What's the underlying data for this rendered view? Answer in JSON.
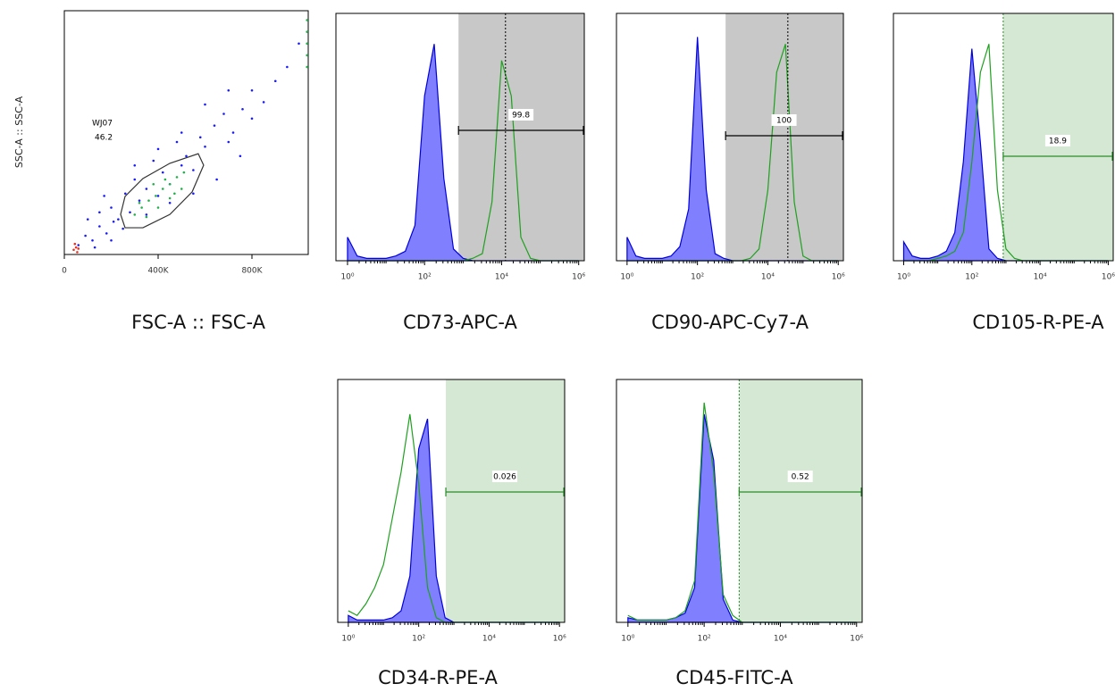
{
  "chart_data": [
    {
      "type": "scatter",
      "x_label": "FSC-A :: FSC-A",
      "y_label": "SSC-A :: SSC-A",
      "xlim": [
        0,
        1040
      ],
      "ylim": [
        0,
        1040
      ],
      "xticks": [
        0,
        {
          "value": 400,
          "label": "400K"
        },
        {
          "value": 800,
          "label": "800K"
        }
      ],
      "series": [
        {
          "color": "#1a1aff",
          "x": [
            60,
            90,
            120,
            150,
            180,
            200,
            230,
            260,
            280,
            300,
            320,
            350,
            380,
            400,
            420,
            450,
            480,
            500,
            520,
            550,
            580,
            600,
            640,
            680,
            700,
            720,
            760,
            800,
            850,
            900,
            950,
            1000,
            150,
            250,
            350,
            450,
            550,
            650,
            750,
            200,
            300,
            400,
            500,
            600,
            700,
            800,
            100,
            130,
            170,
            210
          ],
          "values": [
            40,
            80,
            60,
            120,
            90,
            200,
            150,
            260,
            180,
            320,
            230,
            280,
            400,
            250,
            350,
            300,
            480,
            380,
            420,
            360,
            500,
            460,
            550,
            600,
            480,
            520,
            620,
            700,
            650,
            740,
            800,
            900,
            180,
            110,
            170,
            220,
            260,
            320,
            420,
            60,
            380,
            450,
            520,
            640,
            700,
            580,
            150,
            30,
            250,
            140
          ]
        },
        {
          "color": "#22b04a",
          "x": [
            300,
            330,
            360,
            390,
            420,
            450,
            480,
            510,
            350,
            400,
            450,
            500,
            380,
            430,
            470,
            320,
            1035,
            1035,
            1035,
            1035,
            1035
          ],
          "values": [
            170,
            200,
            230,
            250,
            280,
            300,
            330,
            350,
            160,
            200,
            240,
            280,
            300,
            320,
            260,
            220,
            800,
            850,
            900,
            950,
            1000
          ]
        },
        {
          "color": "#e83020",
          "x": [
            40,
            50,
            60,
            45,
            55
          ],
          "values": [
            20,
            30,
            25,
            45,
            10
          ]
        }
      ],
      "gates": [
        {
          "name": "WJ07",
          "percent": 46.2,
          "x": [
            240,
            259,
            335,
            450,
            571,
            594,
            545,
            450,
            335,
            259
          ],
          "y": [
            171,
            248,
            324,
            389,
            430,
            381,
            267,
            171,
            114,
            114
          ]
        }
      ]
    },
    {
      "type": "line",
      "x_label": "CD73-APC-A",
      "xscale": "log",
      "xlim": [
        0.5,
        1400000
      ],
      "ylim": [
        0,
        105
      ],
      "xticks": [
        {
          "value": 1,
          "label": "10⁰"
        },
        {
          "value": 100,
          "label": "10²"
        },
        {
          "value": 10000,
          "label": "10⁴"
        },
        {
          "value": 1000000,
          "label": "10⁶"
        }
      ],
      "x": [
        1,
        1.78,
        3.16,
        5.62,
        10,
        17.8,
        31.6,
        56.2,
        100,
        178,
        316,
        562,
        1000,
        1780,
        3160,
        5620,
        10000,
        17800,
        31600,
        56200,
        100000,
        178000,
        316000,
        562000,
        1000000
      ],
      "series": [
        {
          "color": "#0000e0",
          "fill": "#8080ff",
          "values": [
            10,
            2,
            1,
            1,
            1,
            2,
            4,
            15,
            70,
            92,
            35,
            5,
            1,
            0,
            0,
            0,
            0,
            0,
            0,
            0,
            0,
            0,
            0,
            0,
            0
          ]
        },
        {
          "color": "#1fa01f",
          "values": [
            0,
            0,
            0,
            0,
            0,
            0,
            0,
            0,
            0,
            0,
            0,
            0,
            0,
            1,
            3,
            25,
            85,
            70,
            10,
            1,
            0,
            0,
            0,
            0,
            0
          ]
        }
      ],
      "gate": {
        "from": 760,
        "to": 1400000,
        "percent": 99.8,
        "color": "#c8c8c8",
        "line_color": "#000000"
      },
      "marker": 12600
    },
    {
      "type": "line",
      "x_label": "CD90-APC-Cy7-A",
      "xscale": "log",
      "xlim": [
        0.5,
        1400000
      ],
      "ylim": [
        0,
        105
      ],
      "xticks": [
        {
          "value": 1,
          "label": "10⁰"
        },
        {
          "value": 100,
          "label": "10²"
        },
        {
          "value": 10000,
          "label": "10⁴"
        },
        {
          "value": 1000000,
          "label": "10⁶"
        }
      ],
      "x": [
        1,
        1.78,
        3.16,
        5.62,
        10,
        17.8,
        31.6,
        56.2,
        100,
        178,
        316,
        562,
        1000,
        1780,
        3160,
        5620,
        10000,
        17800,
        31600,
        56200,
        100000,
        178000,
        316000,
        562000,
        1000000
      ],
      "series": [
        {
          "color": "#0000e0",
          "fill": "#8080ff",
          "values": [
            10,
            2,
            1,
            1,
            1,
            2,
            6,
            22,
            95,
            30,
            3,
            1,
            0,
            0,
            0,
            0,
            0,
            0,
            0,
            0,
            0,
            0,
            0,
            0,
            0
          ]
        },
        {
          "color": "#1fa01f",
          "values": [
            0,
            0,
            0,
            0,
            0,
            0,
            0,
            0,
            0,
            0,
            0,
            0,
            0,
            0,
            1,
            5,
            30,
            80,
            92,
            25,
            2,
            0,
            0,
            0,
            0
          ]
        }
      ],
      "gate": {
        "from": 630,
        "to": 1400000,
        "percent": 100,
        "color": "#c8c8c8",
        "line_color": "#000000"
      },
      "marker": 37000
    },
    {
      "type": "line",
      "x_label": "CD105-R-PE-A",
      "xscale": "log",
      "xlim": [
        0.5,
        1400000
      ],
      "ylim": [
        0,
        105
      ],
      "xticks": [
        {
          "value": 1,
          "label": "10⁰"
        },
        {
          "value": 100,
          "label": "10²"
        },
        {
          "value": 10000,
          "label": "10⁴"
        },
        {
          "value": 1000000,
          "label": "10⁶"
        }
      ],
      "x": [
        1,
        1.78,
        3.16,
        5.62,
        10,
        17.8,
        31.6,
        56.2,
        100,
        178,
        316,
        562,
        1000,
        1780,
        3160,
        5620,
        10000,
        17800,
        31600,
        56200,
        100000,
        178000,
        316000,
        562000,
        1000000
      ],
      "series": [
        {
          "color": "#0000e0",
          "fill": "#8080ff",
          "values": [
            8,
            2,
            1,
            1,
            2,
            4,
            12,
            42,
            90,
            50,
            5,
            1,
            0,
            0,
            0,
            0,
            0,
            0,
            0,
            0,
            0,
            0,
            0,
            0,
            0
          ]
        },
        {
          "color": "#1fa01f",
          "values": [
            0,
            0,
            0,
            0,
            1,
            2,
            4,
            12,
            42,
            80,
            92,
            30,
            5,
            1,
            0,
            0,
            0,
            0,
            0,
            0,
            0,
            0,
            0,
            0,
            0
          ]
        }
      ],
      "gate": {
        "from": 830,
        "to": 1400000,
        "percent": 18.9,
        "color": "#d5e8d4",
        "line_color": "#2a8a2a"
      },
      "marker": 830
    },
    {
      "type": "line",
      "x_label": "CD34-R-PE-A",
      "xscale": "log",
      "xlim": [
        0.5,
        1400000
      ],
      "ylim": [
        0,
        105
      ],
      "xticks": [
        {
          "value": 1,
          "label": "10⁰"
        },
        {
          "value": 100,
          "label": "10²"
        },
        {
          "value": 10000,
          "label": "10⁴"
        },
        {
          "value": 1000000,
          "label": "10⁶"
        }
      ],
      "x": [
        1,
        1.78,
        3.16,
        5.62,
        10,
        17.8,
        31.6,
        56.2,
        100,
        178,
        316,
        562,
        1000,
        1780,
        3160,
        5620,
        10000,
        17800,
        31600,
        56200,
        100000,
        178000,
        316000,
        562000,
        1000000
      ],
      "series": [
        {
          "color": "#0000e0",
          "fill": "#8080ff",
          "values": [
            3,
            1,
            1,
            1,
            1,
            2,
            5,
            20,
            75,
            88,
            20,
            2,
            0,
            0,
            0,
            0,
            0,
            0,
            0,
            0,
            0,
            0,
            0,
            0,
            0
          ]
        },
        {
          "color": "#1fa01f",
          "values": [
            5,
            3,
            8,
            15,
            25,
            45,
            65,
            90,
            60,
            15,
            2,
            0,
            0,
            0,
            0,
            0,
            0,
            0,
            0,
            0,
            0,
            0,
            0,
            0,
            0
          ]
        }
      ],
      "gate": {
        "from": 590,
        "to": 1400000,
        "percent": 0.026,
        "color": "#d5e8d4",
        "line_color": "#2a8a2a"
      }
    },
    {
      "type": "line",
      "x_label": "CD45-FITC-A",
      "xscale": "log",
      "xlim": [
        0.5,
        1400000
      ],
      "ylim": [
        0,
        105
      ],
      "xticks": [
        {
          "value": 1,
          "label": "10⁰"
        },
        {
          "value": 100,
          "label": "10²"
        },
        {
          "value": 10000,
          "label": "10⁴"
        },
        {
          "value": 1000000,
          "label": "10⁶"
        }
      ],
      "x": [
        1,
        1.78,
        3.16,
        5.62,
        10,
        17.8,
        31.6,
        56.2,
        100,
        178,
        316,
        562,
        1000,
        1780,
        3160,
        5620,
        10000,
        17800,
        31600,
        56200,
        100000,
        178000,
        316000,
        562000,
        1000000
      ],
      "series": [
        {
          "color": "#0000e0",
          "fill": "#8080ff",
          "values": [
            2,
            1,
            1,
            1,
            1,
            2,
            4,
            15,
            90,
            70,
            10,
            1,
            0,
            0,
            0,
            0,
            0,
            0,
            0,
            0,
            0,
            0,
            0,
            0,
            0
          ]
        },
        {
          "color": "#1fa01f",
          "values": [
            3,
            1,
            1,
            1,
            1,
            2,
            5,
            18,
            95,
            65,
            12,
            3,
            0,
            0,
            0,
            0,
            0,
            0,
            0,
            0,
            0,
            0,
            0,
            0,
            0
          ]
        }
      ],
      "gate": {
        "from": 830,
        "to": 1400000,
        "percent": 0.52,
        "color": "#d5e8d4",
        "line_color": "#2a8a2a"
      },
      "marker": 830
    }
  ]
}
